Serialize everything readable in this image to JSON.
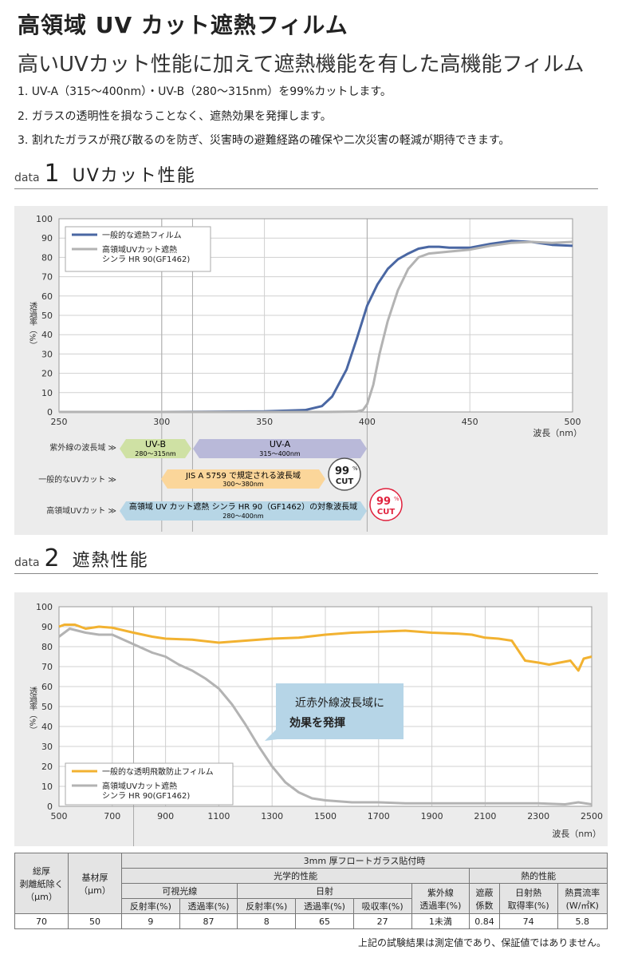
{
  "title": "高領域 UV カット遮熱フィルム",
  "subtitle": "高いUVカット性能に加えて遮熱機能を有した高機能フィルム",
  "features": [
    "1. UV-A（315〜400nm）・UV-B（280〜315nm）を99%カットします。",
    "2. ガラスの透明性を損なうことなく、遮熱効果を発揮します。",
    "3. 割れたガラスが飛び散るのを防ぎ、災害時の避難経路の確保や二次災害の軽減が期待できます。"
  ],
  "section1": {
    "label": "data",
    "number": "1",
    "title": "UVカット性能"
  },
  "section2": {
    "label": "data",
    "number": "2",
    "title": "遮熱性能"
  },
  "chart_data": [
    {
      "type": "line",
      "xlabel": "波長（nm）",
      "ylabel": "透過率（%）",
      "xlim": [
        250,
        500
      ],
      "ylim": [
        0,
        100
      ],
      "xticks": [
        250,
        300,
        350,
        400,
        450,
        500
      ],
      "yticks": [
        0,
        10,
        20,
        30,
        40,
        50,
        60,
        70,
        80,
        90,
        100
      ],
      "legend_position": "top-left",
      "grid": true,
      "series": [
        {
          "name": "一般的な遮熱フィルム",
          "color": "#4a67a3",
          "x": [
            250,
            300,
            350,
            370,
            378,
            383,
            390,
            395,
            400,
            405,
            410,
            415,
            420,
            425,
            430,
            435,
            440,
            450,
            460,
            470,
            480,
            490,
            500
          ],
          "y": [
            0,
            0,
            0.3,
            1,
            3,
            8,
            22,
            38,
            55,
            66,
            74,
            79,
            82,
            84.5,
            85.5,
            85.5,
            85,
            85,
            87,
            88.5,
            88,
            86.5,
            86
          ]
        },
        {
          "name": "高領域UVカット遮熱\nシンラ HR 90(GF1462)",
          "color": "#b3b3b3",
          "x": [
            250,
            380,
            395,
            398,
            400,
            403,
            406,
            410,
            415,
            420,
            425,
            430,
            435,
            440,
            450,
            460,
            470,
            480,
            490,
            500
          ],
          "y": [
            0,
            0,
            0.2,
            1,
            4,
            14,
            30,
            47,
            63,
            74,
            80,
            82,
            82.5,
            83,
            84,
            86,
            87.5,
            88,
            87.5,
            88
          ]
        }
      ]
    },
    {
      "type": "line",
      "xlabel": "波長（nm）",
      "ylabel": "透過率（%）",
      "xlim": [
        500,
        2500
      ],
      "ylim": [
        0,
        100
      ],
      "xticks": [
        500,
        700,
        900,
        1100,
        1300,
        1500,
        1700,
        1900,
        2100,
        2300,
        2500
      ],
      "yticks": [
        0,
        10,
        20,
        30,
        40,
        50,
        60,
        70,
        80,
        90,
        100
      ],
      "legend_position": "bottom-left",
      "grid": true,
      "series": [
        {
          "name": "一般的な透明飛散防止フィルム",
          "color": "#f2b231",
          "x": [
            500,
            520,
            560,
            600,
            650,
            700,
            780,
            850,
            900,
            1000,
            1100,
            1200,
            1300,
            1400,
            1500,
            1600,
            1700,
            1800,
            1900,
            2000,
            2050,
            2100,
            2150,
            2200,
            2250,
            2300,
            2340,
            2380,
            2420,
            2450,
            2470,
            2500
          ],
          "y": [
            90,
            91,
            91,
            89,
            90,
            89.5,
            87,
            85,
            84,
            83.5,
            82,
            83,
            84,
            84.5,
            86,
            87,
            87.5,
            88,
            87,
            86.5,
            86,
            84.5,
            84,
            83,
            73,
            72,
            71,
            72,
            73,
            68,
            74,
            75
          ]
        },
        {
          "name": "高領域UVカット遮熱\nシンラ HR 90(GF1462)",
          "color": "#b3b3b3",
          "x": [
            500,
            540,
            600,
            650,
            700,
            750,
            800,
            850,
            900,
            950,
            1000,
            1050,
            1100,
            1150,
            1200,
            1250,
            1300,
            1350,
            1400,
            1450,
            1500,
            1600,
            1700,
            1800,
            1900,
            2000,
            2100,
            2200,
            2300,
            2400,
            2450,
            2500
          ],
          "y": [
            85,
            89,
            87,
            86,
            86,
            83,
            80,
            77,
            75,
            71,
            68,
            64,
            59,
            51,
            41,
            30,
            20,
            12,
            7,
            4,
            3,
            2,
            2,
            1.5,
            1.5,
            1.5,
            1.5,
            1.5,
            1.5,
            1,
            2,
            1
          ]
        }
      ]
    }
  ],
  "chart1_xaxis_unit": "波長（nm）",
  "chart2_xaxis_unit": "波長（nm）",
  "bands": {
    "row1_label": "紫外線の波長域 ≫",
    "row2_label": "一般的なUVカット ≫",
    "row3_label": "高領域UVカット ≫",
    "uvb_name": "UV-B",
    "uvb_range": "280〜315nm",
    "uva_name": "UV-A",
    "uva_range": "315〜400nm",
    "jis_name": "JIS A 5759 で規定される波長域",
    "jis_range": "300〜380nm",
    "hr_name": "高領域 UV カット遮熱 シンラ HR 90（GF1462）の対象波長域",
    "hr_range": "280〜400nm",
    "badge_number": "99",
    "badge_pct": "%",
    "badge_cut": "CUT"
  },
  "callout": {
    "line1": "近赤外線波長域に",
    "line2": "効果を発揮"
  },
  "table": {
    "caption": "3mm 厚フロートガラス貼付時",
    "col_total_l1": "総厚",
    "col_total_l2": "剥離紙除く",
    "col_total_l3": "（μm）",
    "col_base_l1": "基材厚",
    "col_base_l2": "（μm）",
    "optical": "光学的性能",
    "thermal": "熱的性能",
    "visible": "可視光線",
    "solar": "日射",
    "uv_l1": "紫外線",
    "uv_l2": "透過率(%)",
    "refl_vis": "反射率(%)",
    "trans_vis": "透過率(%)",
    "refl_sol": "反射率(%)",
    "trans_sol": "透過率(%)",
    "abs_sol": "吸収率(%)",
    "shade_l1": "遮蔽",
    "shade_l2": "係数",
    "gain_l1": "日射熱",
    "gain_l2": "取得率(%)",
    "u_l1": "熱貫流率",
    "u_l2": "(W/㎡K)",
    "values": [
      "70",
      "50",
      "9",
      "87",
      "8",
      "65",
      "27",
      "1未満",
      "0.84",
      "74",
      "5.8"
    ]
  },
  "note": "上記の試験結果は測定値であり、保証値ではありません。"
}
